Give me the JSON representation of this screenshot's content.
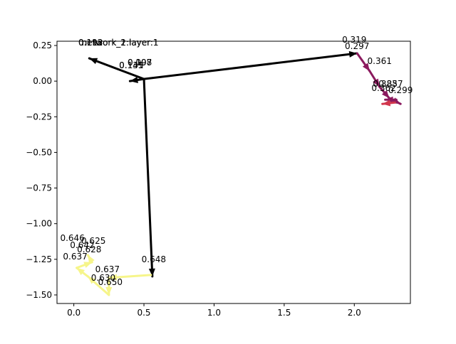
{
  "chart_data": {
    "type": "line",
    "title": "",
    "xlabel": "",
    "ylabel": "",
    "xlim": [
      -0.12,
      2.4
    ],
    "ylim": [
      -1.56,
      0.28
    ],
    "grid": false,
    "legend": "none",
    "xticks": [
      0.0,
      0.5,
      1.0,
      1.5,
      2.0
    ],
    "xtick_labels": [
      "0.0",
      "0.5",
      "1.0",
      "1.5",
      "2.0"
    ],
    "yticks": [
      0.25,
      0.0,
      -0.25,
      -0.5,
      -0.75,
      -1.0,
      -1.25,
      -1.5
    ],
    "ytick_labels": [
      "0.25",
      "0.00",
      "−0.25",
      "−0.50",
      "−0.75",
      "−1.00",
      "−1.25",
      "−1.50"
    ],
    "series": [
      {
        "color": "#000000",
        "width": 3,
        "segments": [
          {
            "from": [
              0.5,
              0.015
            ],
            "to": [
              0.11,
              0.16
            ]
          },
          {
            "from": [
              0.5,
              0.015
            ],
            "to": [
              2.02,
              0.195
            ]
          },
          {
            "from": [
              0.5,
              0.015
            ],
            "to": [
              0.56,
              -1.37
            ]
          },
          {
            "from": [
              0.5,
              0.015
            ],
            "to": [
              0.4,
              0.0
            ]
          }
        ]
      },
      {
        "color": "#8b1a5e",
        "width": 3,
        "segments": [
          {
            "from": [
              2.02,
              0.195
            ],
            "to": [
              2.11,
              0.07
            ]
          },
          {
            "from": [
              2.11,
              0.07
            ],
            "to": [
              2.18,
              -0.04
            ]
          },
          {
            "from": [
              2.18,
              -0.04
            ],
            "to": [
              2.25,
              -0.12
            ]
          },
          {
            "from": [
              2.25,
              -0.12
            ],
            "to": [
              2.33,
              -0.16
            ]
          },
          {
            "from": [
              2.3,
              -0.13
            ],
            "to": [
              2.22,
              -0.13
            ]
          }
        ]
      },
      {
        "color": "#d2364c",
        "width": 3,
        "segments": [
          {
            "from": [
              2.29,
              -0.15
            ],
            "to": [
              2.2,
              -0.16
            ]
          }
        ]
      },
      {
        "color": "#f6f58a",
        "width": 3,
        "segments": [
          {
            "from": [
              0.55,
              -1.36
            ],
            "to": [
              0.25,
              -1.38
            ]
          },
          {
            "from": [
              0.25,
              -1.38
            ],
            "to": [
              0.25,
              -1.5
            ]
          },
          {
            "from": [
              0.25,
              -1.5
            ],
            "to": [
              0.1,
              -1.37
            ]
          },
          {
            "from": [
              0.1,
              -1.37
            ],
            "to": [
              0.02,
              -1.31
            ]
          },
          {
            "from": [
              0.02,
              -1.31
            ],
            "to": [
              0.13,
              -1.27
            ]
          },
          {
            "from": [
              0.13,
              -1.27
            ],
            "to": [
              0.1,
              -1.22
            ]
          }
        ]
      }
    ],
    "annotations": [
      {
        "text": "0.319",
        "x": 2.0,
        "y": 0.27
      },
      {
        "text": "0.297",
        "x": 2.02,
        "y": 0.225
      },
      {
        "text": "0.361",
        "x": 2.18,
        "y": 0.12
      },
      {
        "text": "0.357",
        "x": 2.26,
        "y": -0.04
      },
      {
        "text": "0.383",
        "x": 2.22,
        "y": -0.04
      },
      {
        "text": "0.362",
        "x": 2.21,
        "y": -0.07
      },
      {
        "text": "0.299",
        "x": 2.33,
        "y": -0.085
      },
      {
        "text": "0.112",
        "x": 0.12,
        "y": 0.25
      },
      {
        "text": "0.193",
        "x": 0.12,
        "y": 0.25
      },
      {
        "text": "network_1:layer:1",
        "x": 0.33,
        "y": 0.25
      },
      {
        "text": "network_2:layer:1",
        "x": 0.33,
        "y": 0.25
      },
      {
        "text": "0.098",
        "x": 0.47,
        "y": 0.11
      },
      {
        "text": "0.107",
        "x": 0.47,
        "y": 0.11
      },
      {
        "text": "0.131",
        "x": 0.41,
        "y": 0.09
      },
      {
        "text": "0.145",
        "x": 0.41,
        "y": 0.09
      },
      {
        "text": "0.648",
        "x": 0.57,
        "y": -1.27
      },
      {
        "text": "0.646",
        "x": -0.01,
        "y": -1.12
      },
      {
        "text": "0.625",
        "x": 0.14,
        "y": -1.14
      },
      {
        "text": "0.642",
        "x": 0.06,
        "y": -1.17
      },
      {
        "text": "0.628",
        "x": 0.11,
        "y": -1.2
      },
      {
        "text": "0.637",
        "x": 0.01,
        "y": -1.25
      },
      {
        "text": "0.637",
        "x": 0.24,
        "y": -1.34
      },
      {
        "text": "0.630",
        "x": 0.21,
        "y": -1.4
      },
      {
        "text": "0.650",
        "x": 0.26,
        "y": -1.43
      }
    ]
  }
}
